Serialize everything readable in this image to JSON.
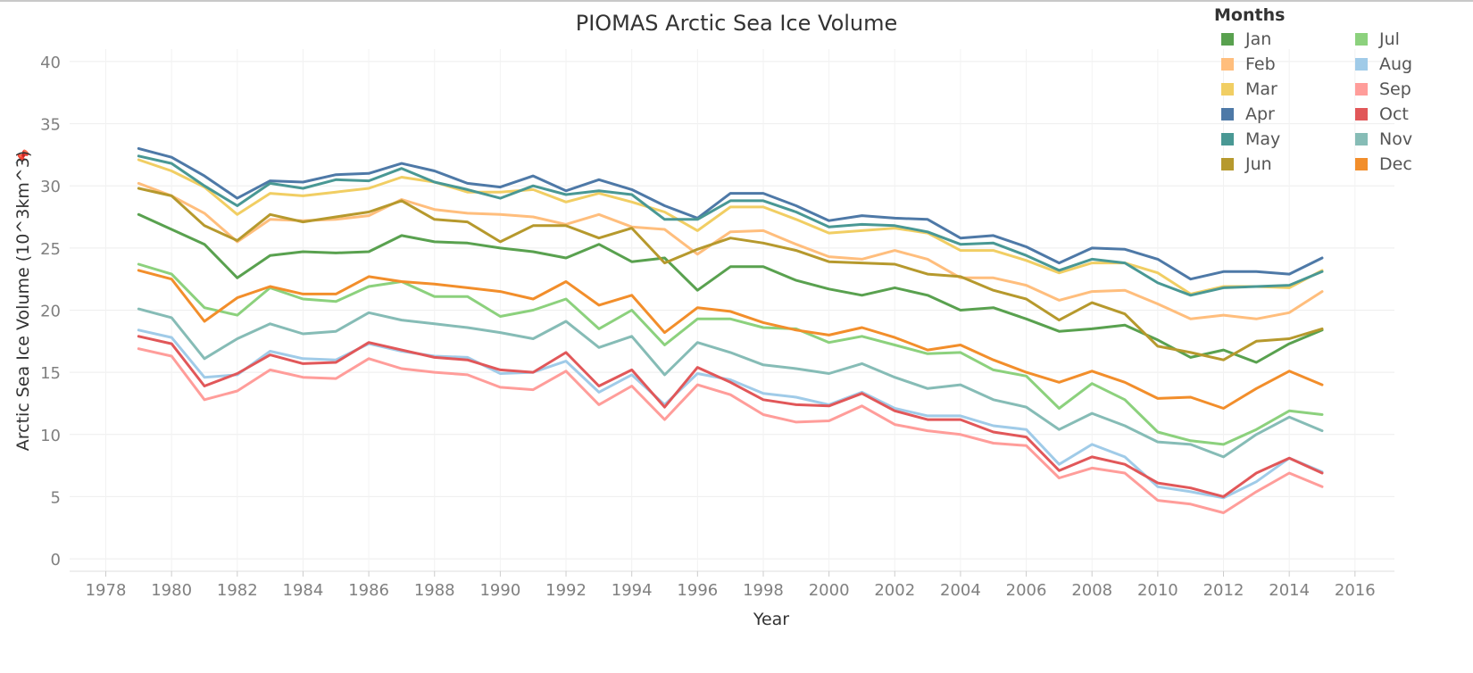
{
  "chart_data": {
    "type": "line",
    "title": "PIOMAS Arctic Sea Ice Volume",
    "xlabel": "Year",
    "ylabel": "Arctic Sea Ice Volume (10^3km^3)",
    "xlim": [
      1976.9,
      2017.2
    ],
    "ylim": [
      -1,
      41
    ],
    "xticks": [
      1978,
      1980,
      1982,
      1984,
      1986,
      1988,
      1990,
      1992,
      1994,
      1996,
      1998,
      2000,
      2002,
      2004,
      2006,
      2008,
      2010,
      2012,
      2014,
      2016
    ],
    "yticks": [
      0,
      5,
      10,
      15,
      20,
      25,
      30,
      35,
      40
    ],
    "grid": true,
    "legend_title": "Months",
    "legend_position": "top-right",
    "x": [
      1979,
      1980,
      1981,
      1982,
      1983,
      1984,
      1985,
      1986,
      1987,
      1988,
      1989,
      1990,
      1991,
      1992,
      1993,
      1994,
      1995,
      1996,
      1997,
      1998,
      1999,
      2000,
      2001,
      2002,
      2003,
      2004,
      2005,
      2006,
      2007,
      2008,
      2009,
      2010,
      2011,
      2012,
      2013,
      2014,
      2015
    ],
    "series": [
      {
        "name": "Jan",
        "color": "#59a14f",
        "values": [
          27.7,
          26.5,
          25.3,
          22.6,
          24.4,
          24.7,
          24.6,
          24.7,
          26.0,
          25.5,
          25.4,
          25.0,
          24.7,
          24.2,
          25.3,
          23.9,
          24.2,
          21.6,
          23.5,
          23.5,
          22.4,
          21.7,
          21.2,
          21.8,
          21.2,
          20.0,
          20.2,
          19.3,
          18.3,
          18.5,
          18.8,
          17.6,
          16.2,
          16.8,
          15.8,
          17.3,
          18.4
        ]
      },
      {
        "name": "Feb",
        "color": "#ffbe7d",
        "values": [
          30.2,
          29.2,
          27.8,
          25.5,
          27.3,
          27.2,
          27.3,
          27.6,
          28.9,
          28.1,
          27.8,
          27.7,
          27.5,
          26.9,
          27.7,
          26.7,
          26.5,
          24.5,
          26.3,
          26.4,
          25.3,
          24.3,
          24.1,
          24.8,
          24.1,
          22.6,
          22.6,
          22.0,
          20.8,
          21.5,
          21.6,
          20.5,
          19.3,
          19.6,
          19.3,
          19.8,
          21.5
        ]
      },
      {
        "name": "Mar",
        "color": "#f1ce63",
        "values": [
          32.1,
          31.2,
          29.9,
          27.7,
          29.4,
          29.2,
          29.5,
          29.8,
          30.7,
          30.3,
          29.5,
          29.5,
          29.7,
          28.7,
          29.4,
          28.7,
          27.9,
          26.4,
          28.3,
          28.3,
          27.3,
          26.2,
          26.4,
          26.6,
          26.2,
          24.8,
          24.8,
          24.0,
          23.0,
          23.8,
          23.8,
          23.0,
          21.3,
          21.9,
          21.9,
          21.8,
          23.2
        ]
      },
      {
        "name": "Apr",
        "color": "#4e79a7",
        "values": [
          33.0,
          32.3,
          30.8,
          29.0,
          30.4,
          30.3,
          30.9,
          31.0,
          31.8,
          31.2,
          30.2,
          29.9,
          30.8,
          29.6,
          30.5,
          29.7,
          28.4,
          27.4,
          29.4,
          29.4,
          28.4,
          27.2,
          27.6,
          27.4,
          27.3,
          25.8,
          26.0,
          25.1,
          23.8,
          25.0,
          24.9,
          24.1,
          22.5,
          23.1,
          23.1,
          22.9,
          24.2
        ]
      },
      {
        "name": "May",
        "color": "#499894",
        "values": [
          32.4,
          31.8,
          30.0,
          28.4,
          30.2,
          29.8,
          30.5,
          30.4,
          31.4,
          30.3,
          29.7,
          29.0,
          30.0,
          29.3,
          29.6,
          29.3,
          27.3,
          27.3,
          28.8,
          28.8,
          27.9,
          26.7,
          26.9,
          26.8,
          26.3,
          25.3,
          25.4,
          24.4,
          23.2,
          24.1,
          23.8,
          22.2,
          21.2,
          21.8,
          21.9,
          22.0,
          23.1
        ]
      },
      {
        "name": "Jun",
        "color": "#b6992d",
        "values": [
          29.8,
          29.2,
          26.8,
          25.6,
          27.7,
          27.1,
          27.5,
          27.9,
          28.8,
          27.3,
          27.1,
          25.5,
          26.8,
          26.8,
          25.8,
          26.6,
          23.8,
          24.9,
          25.8,
          25.4,
          24.8,
          23.9,
          23.8,
          23.7,
          22.9,
          22.7,
          21.6,
          20.9,
          19.2,
          20.6,
          19.7,
          17.1,
          16.6,
          16.0,
          17.5,
          17.7,
          18.5
        ]
      },
      {
        "name": "Jul",
        "color": "#8cd17d",
        "values": [
          23.7,
          22.9,
          20.2,
          19.6,
          21.8,
          20.9,
          20.7,
          21.9,
          22.3,
          21.1,
          21.1,
          19.5,
          20.0,
          20.9,
          18.5,
          20.0,
          17.2,
          19.3,
          19.3,
          18.6,
          18.5,
          17.4,
          17.9,
          17.2,
          16.5,
          16.6,
          15.2,
          14.7,
          12.1,
          14.1,
          12.8,
          10.2,
          9.5,
          9.2,
          10.4,
          11.9,
          11.6
        ]
      },
      {
        "name": "Aug",
        "color": "#a0cbe8",
        "values": [
          18.4,
          17.8,
          14.6,
          14.8,
          16.7,
          16.1,
          16.0,
          17.3,
          16.7,
          16.3,
          16.2,
          14.9,
          15.0,
          15.9,
          13.4,
          14.8,
          12.4,
          14.9,
          14.4,
          13.3,
          13.0,
          12.4,
          13.4,
          12.1,
          11.5,
          11.5,
          10.7,
          10.4,
          7.6,
          9.2,
          8.2,
          5.8,
          5.4,
          4.9,
          6.2,
          8.1,
          7.0
        ]
      },
      {
        "name": "Sep",
        "color": "#ff9d9a",
        "values": [
          16.9,
          16.3,
          12.8,
          13.5,
          15.2,
          14.6,
          14.5,
          16.1,
          15.3,
          15.0,
          14.8,
          13.8,
          13.6,
          15.1,
          12.4,
          13.9,
          11.2,
          14.0,
          13.2,
          11.6,
          11.0,
          11.1,
          12.3,
          10.8,
          10.3,
          10.0,
          9.3,
          9.1,
          6.5,
          7.3,
          6.9,
          4.7,
          4.4,
          3.7,
          5.4,
          6.9,
          5.8
        ]
      },
      {
        "name": "Oct",
        "color": "#e15759",
        "values": [
          17.9,
          17.3,
          13.9,
          14.9,
          16.4,
          15.7,
          15.8,
          17.4,
          16.8,
          16.2,
          16.0,
          15.2,
          15.0,
          16.6,
          13.9,
          15.2,
          12.2,
          15.4,
          14.2,
          12.8,
          12.4,
          12.3,
          13.3,
          11.9,
          11.2,
          11.2,
          10.2,
          9.8,
          7.1,
          8.2,
          7.6,
          6.1,
          5.7,
          5.0,
          6.9,
          8.1,
          6.9
        ]
      },
      {
        "name": "Nov",
        "color": "#86bcb6",
        "values": [
          20.1,
          19.4,
          16.1,
          17.7,
          18.9,
          18.1,
          18.3,
          19.8,
          19.2,
          18.9,
          18.6,
          18.2,
          17.7,
          19.1,
          17.0,
          17.9,
          14.8,
          17.4,
          16.6,
          15.6,
          15.3,
          14.9,
          15.7,
          14.6,
          13.7,
          14.0,
          12.8,
          12.2,
          10.4,
          11.7,
          10.7,
          9.4,
          9.2,
          8.2,
          10.0,
          11.4,
          10.3
        ]
      },
      {
        "name": "Dec",
        "color": "#f28e2b",
        "values": [
          23.2,
          22.5,
          19.1,
          21.0,
          21.9,
          21.3,
          21.3,
          22.7,
          22.3,
          22.1,
          21.8,
          21.5,
          20.9,
          22.3,
          20.4,
          21.2,
          18.2,
          20.2,
          19.9,
          19.0,
          18.4,
          18.0,
          18.6,
          17.8,
          16.8,
          17.2,
          16.0,
          15.0,
          14.2,
          15.1,
          14.2,
          12.9,
          13.0,
          12.1,
          13.7,
          15.1,
          14.0
        ]
      }
    ]
  },
  "legend_order": [
    "Jan",
    "Jul",
    "Feb",
    "Aug",
    "Mar",
    "Sep",
    "Apr",
    "Oct",
    "May",
    "Nov",
    "Jun",
    "Dec"
  ]
}
